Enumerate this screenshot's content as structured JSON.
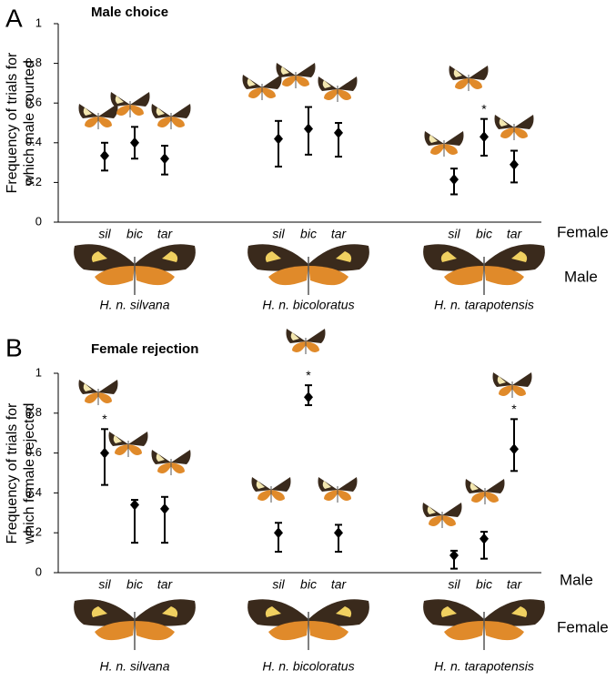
{
  "chart_data": [
    {
      "type": "errorbar",
      "panel": "A",
      "title": "Male choice",
      "ylabel": [
        "Frequency of trials for",
        "which male courted"
      ],
      "xlabel": "Female",
      "group_label": "Male",
      "asterisk": "*",
      "ylim": [
        0,
        1
      ],
      "yticks": [
        0,
        0.2,
        0.4,
        0.6,
        0.8,
        1
      ],
      "groups": [
        {
          "name": "H. n. silvana",
          "categories": [
            "sil",
            "bic",
            "tar"
          ],
          "values": [
            0.335,
            0.4,
            0.32
          ],
          "error_low": [
            0.26,
            0.32,
            0.24
          ],
          "error_high": [
            0.4,
            0.48,
            0.385
          ],
          "significant": [
            false,
            false,
            false
          ]
        },
        {
          "name": "H. n. bicoloratus",
          "categories": [
            "sil",
            "bic",
            "tar"
          ],
          "values": [
            0.42,
            0.47,
            0.45
          ],
          "error_low": [
            0.28,
            0.34,
            0.33
          ],
          "error_high": [
            0.51,
            0.58,
            0.5
          ],
          "significant": [
            false,
            false,
            false
          ]
        },
        {
          "name": "H. n. tarapotensis",
          "categories": [
            "sil",
            "bic",
            "tar"
          ],
          "values": [
            0.215,
            0.43,
            0.29
          ],
          "error_low": [
            0.14,
            0.335,
            0.2
          ],
          "error_high": [
            0.27,
            0.52,
            0.36
          ],
          "significant": [
            false,
            true,
            false
          ]
        }
      ]
    },
    {
      "type": "errorbar",
      "panel": "B",
      "title": "Female rejection",
      "ylabel": [
        "Frequency of trials for",
        "which female rejected"
      ],
      "xlabel": "Male",
      "group_label": "Female",
      "asterisk": "*",
      "ylim": [
        0,
        1
      ],
      "yticks": [
        0,
        0.2,
        0.4,
        0.6,
        0.8,
        1
      ],
      "groups": [
        {
          "name": "H. n. silvana",
          "categories": [
            "sil",
            "bic",
            "tar"
          ],
          "values": [
            0.6,
            0.34,
            0.32
          ],
          "error_low": [
            0.44,
            0.15,
            0.15
          ],
          "error_high": [
            0.72,
            0.365,
            0.38
          ],
          "significant": [
            true,
            false,
            false
          ]
        },
        {
          "name": "H. n. bicoloratus",
          "categories": [
            "sil",
            "bic",
            "tar"
          ],
          "values": [
            0.2,
            0.88,
            0.2
          ],
          "error_low": [
            0.105,
            0.84,
            0.105
          ],
          "error_high": [
            0.25,
            0.94,
            0.24
          ],
          "significant": [
            false,
            true,
            false
          ]
        },
        {
          "name": "H. n. tarapotensis",
          "categories": [
            "sil",
            "bic",
            "tar"
          ],
          "values": [
            0.087,
            0.17,
            0.62
          ],
          "error_low": [
            0.02,
            0.07,
            0.51
          ],
          "error_high": [
            0.11,
            0.205,
            0.77
          ],
          "significant": [
            false,
            false,
            true
          ]
        }
      ]
    }
  ]
}
